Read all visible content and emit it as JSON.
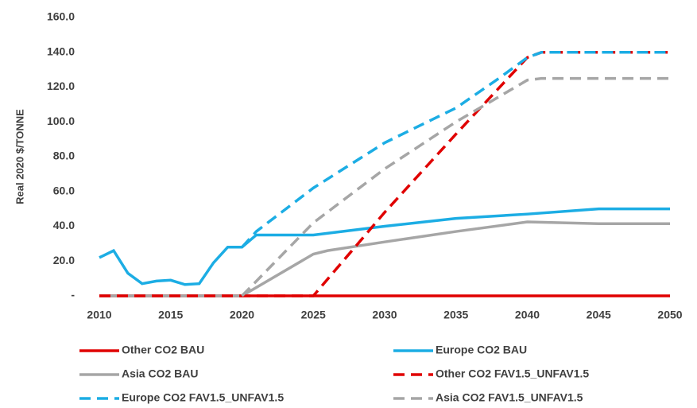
{
  "chart_data": {
    "type": "line",
    "y_label": "Real 2020 $/TONNE",
    "xlim": [
      2010,
      2050
    ],
    "xticks": [
      2010,
      2015,
      2020,
      2025,
      2030,
      2035,
      2040,
      2045,
      2050
    ],
    "ylim": [
      0,
      160
    ],
    "yticks": [
      {
        "value": 0,
        "label": "-"
      },
      {
        "value": 20,
        "label": "20.0"
      },
      {
        "value": 40,
        "label": "40.0"
      },
      {
        "value": 60,
        "label": "60.0"
      },
      {
        "value": 80,
        "label": "80.0"
      },
      {
        "value": 100,
        "label": "100.0"
      },
      {
        "value": 120,
        "label": "120.0"
      },
      {
        "value": 140,
        "label": "140.0"
      },
      {
        "value": 160,
        "label": "160.0"
      }
    ],
    "series": [
      {
        "name": "Other CO2 BAU",
        "color": "#e00000",
        "dashed": false,
        "x": [
          2010,
          2050
        ],
        "values": [
          0,
          0
        ]
      },
      {
        "name": "Europe CO2 BAU",
        "color": "#1cade4",
        "dashed": false,
        "x": [
          2010,
          2011,
          2012,
          2013,
          2014,
          2015,
          2016,
          2017,
          2018,
          2019,
          2020,
          2021,
          2025,
          2030,
          2035,
          2040,
          2045,
          2050
        ],
        "values": [
          22,
          26,
          13,
          7,
          8.5,
          9,
          6.5,
          7,
          19,
          28,
          28,
          35,
          35,
          40,
          44.5,
          47,
          50,
          50
        ]
      },
      {
        "name": "Asia CO2 BAU",
        "color": "#a6a6a6",
        "dashed": false,
        "x": [
          2010,
          2020,
          2025,
          2026,
          2030,
          2035,
          2040,
          2045,
          2050
        ],
        "values": [
          0,
          0,
          24,
          26,
          31,
          37,
          42.5,
          41.5,
          41.5
        ]
      },
      {
        "name": "Other CO2 FAV1.5_UNFAV1.5",
        "color": "#e00000",
        "dashed": true,
        "x": [
          2010,
          2025,
          2030,
          2035,
          2040,
          2041,
          2050
        ],
        "values": [
          0,
          0,
          48,
          93,
          137,
          140,
          140
        ]
      },
      {
        "name": "Europe CO2 FAV1.5_UNFAV1.5",
        "color": "#1cade4",
        "dashed": true,
        "x": [
          2020,
          2021,
          2025,
          2030,
          2035,
          2038,
          2040,
          2041,
          2050
        ],
        "values": [
          28,
          37,
          62,
          88,
          108,
          125,
          137,
          140,
          140
        ]
      },
      {
        "name": "Asia CO2 FAV1.5_UNFAV1.5",
        "color": "#a6a6a6",
        "dashed": true,
        "x": [
          2020,
          2025,
          2030,
          2035,
          2040,
          2041,
          2050
        ],
        "values": [
          0,
          42,
          73,
          100,
          124,
          125,
          125
        ]
      }
    ]
  }
}
